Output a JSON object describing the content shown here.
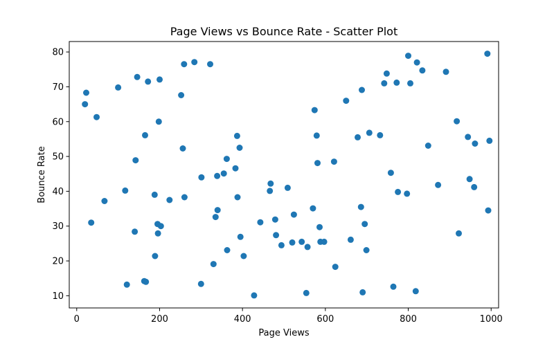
{
  "chart_data": {
    "type": "scatter",
    "title": "Page Views vs Bounce Rate - Scatter Plot",
    "xlabel": "Page Views",
    "ylabel": "Bounce Rate",
    "xlim": [
      -18,
      1018
    ],
    "ylim": [
      6.5,
      83
    ],
    "xticks": [
      0,
      200,
      400,
      600,
      800,
      1000
    ],
    "yticks": [
      10,
      20,
      30,
      40,
      50,
      60,
      70,
      80
    ],
    "grid": false,
    "color": "#1f77b4",
    "points": [
      [
        20,
        65
      ],
      [
        23,
        68.3
      ],
      [
        35,
        31
      ],
      [
        48,
        61.3
      ],
      [
        67,
        37.2
      ],
      [
        100,
        69.8
      ],
      [
        117,
        40.2
      ],
      [
        121,
        13.2
      ],
      [
        140,
        28.4
      ],
      [
        142,
        48.9
      ],
      [
        146,
        72.8
      ],
      [
        163,
        14.2
      ],
      [
        165,
        56.1
      ],
      [
        167,
        14
      ],
      [
        172,
        71.5
      ],
      [
        188,
        39
      ],
      [
        189,
        21.4
      ],
      [
        195,
        30.6
      ],
      [
        196,
        27.9
      ],
      [
        198,
        60
      ],
      [
        200,
        72.1
      ],
      [
        203,
        30
      ],
      [
        224,
        37.5
      ],
      [
        252,
        67.6
      ],
      [
        256,
        52.3
      ],
      [
        259,
        76.5
      ],
      [
        260,
        38.3
      ],
      [
        284,
        77.1
      ],
      [
        300,
        13.4
      ],
      [
        301,
        44
      ],
      [
        322,
        76.5
      ],
      [
        330,
        19.1
      ],
      [
        335,
        32.6
      ],
      [
        339,
        44.4
      ],
      [
        340,
        34.6
      ],
      [
        355,
        45.1
      ],
      [
        362,
        49.3
      ],
      [
        363,
        23.1
      ],
      [
        383,
        46.6
      ],
      [
        387,
        55.9
      ],
      [
        388,
        38.3
      ],
      [
        393,
        52.5
      ],
      [
        395,
        26.9
      ],
      [
        403,
        21.4
      ],
      [
        428,
        10.1
      ],
      [
        443,
        31.1
      ],
      [
        466,
        40.1
      ],
      [
        468,
        42.2
      ],
      [
        479,
        31.9
      ],
      [
        481,
        27.4
      ],
      [
        494,
        24.5
      ],
      [
        509,
        41
      ],
      [
        520,
        25.3
      ],
      [
        524,
        33.3
      ],
      [
        543,
        25.5
      ],
      [
        554,
        10.8
      ],
      [
        557,
        24
      ],
      [
        570,
        35.1
      ],
      [
        574,
        63.3
      ],
      [
        579,
        56
      ],
      [
        581,
        48.1
      ],
      [
        586,
        29.7
      ],
      [
        588,
        25.5
      ],
      [
        597,
        25.5
      ],
      [
        621,
        48.5
      ],
      [
        624,
        18.3
      ],
      [
        650,
        66
      ],
      [
        661,
        26.1
      ],
      [
        678,
        55.5
      ],
      [
        686,
        35.5
      ],
      [
        688,
        69.1
      ],
      [
        690,
        11
      ],
      [
        695,
        30.6
      ],
      [
        699,
        23.1
      ],
      [
        706,
        56.8
      ],
      [
        732,
        56.1
      ],
      [
        742,
        71
      ],
      [
        748,
        73.8
      ],
      [
        758,
        45.3
      ],
      [
        764,
        12.6
      ],
      [
        772,
        71.2
      ],
      [
        775,
        39.8
      ],
      [
        797,
        39.3
      ],
      [
        800,
        78.9
      ],
      [
        805,
        71
      ],
      [
        818,
        11.3
      ],
      [
        821,
        77
      ],
      [
        834,
        74.7
      ],
      [
        848,
        53.1
      ],
      [
        872,
        41.8
      ],
      [
        891,
        74.3
      ],
      [
        917,
        60.1
      ],
      [
        922,
        27.9
      ],
      [
        944,
        55.6
      ],
      [
        948,
        43.5
      ],
      [
        959,
        41.2
      ],
      [
        961,
        53.7
      ],
      [
        991,
        79.5
      ],
      [
        993,
        34.5
      ],
      [
        996,
        54.5
      ]
    ]
  }
}
